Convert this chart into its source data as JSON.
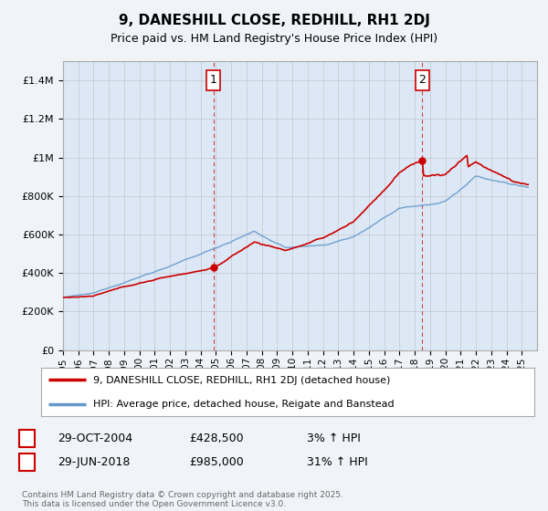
{
  "title": "9, DANESHILL CLOSE, REDHILL, RH1 2DJ",
  "subtitle": "Price paid vs. HM Land Registry's House Price Index (HPI)",
  "legend_line1": "9, DANESHILL CLOSE, REDHILL, RH1 2DJ (detached house)",
  "legend_line2": "HPI: Average price, detached house, Reigate and Banstead",
  "annotation1_date": "29-OCT-2004",
  "annotation1_price": 428500,
  "annotation1_hpi": "3% ↑ HPI",
  "annotation2_date": "29-JUN-2018",
  "annotation2_price": 985000,
  "annotation2_hpi": "31% ↑ HPI",
  "footnote": "Contains HM Land Registry data © Crown copyright and database right 2025.\nThis data is licensed under the Open Government Licence v3.0.",
  "sale1_year": 2004.83,
  "sale2_year": 2018.5,
  "hpi_line_color": "#6699cc",
  "price_line_color": "#cc0000",
  "sale_dot_color": "#cc0000",
  "dashed_line_color": "#cc0000",
  "shade_color": "#dce8f5",
  "background_color": "#f0f4f8",
  "plot_bg_color": "#dce8f5",
  "ylim_min": 0,
  "ylim_max": 1500000,
  "xmin": 1995,
  "xmax": 2026
}
